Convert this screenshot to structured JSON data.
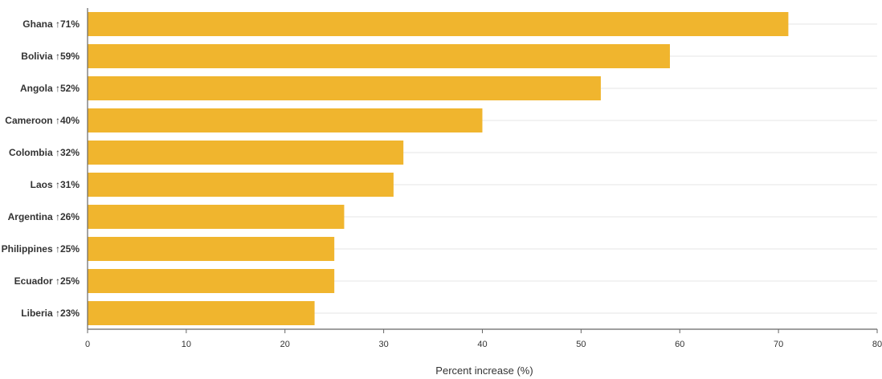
{
  "colors": {
    "bar": "#F0B52E",
    "text": "#333333",
    "grid": "#E6E6E6",
    "axis": "#666666",
    "background": "#FFFFFF"
  },
  "chart_data": {
    "type": "bar",
    "orientation": "horizontal",
    "categories": [
      "Ghana ↑71%",
      "Bolivia ↑59%",
      "Angola ↑52%",
      "Cameroon ↑40%",
      "Colombia ↑32%",
      "Laos ↑31%",
      "Argentina ↑26%",
      "Philippines ↑25%",
      "Ecuador ↑25%",
      "Liberia ↑23%"
    ],
    "values": [
      71,
      59,
      52,
      40,
      32,
      31,
      26,
      25,
      25,
      23
    ],
    "xlabel": "Percent increase (%)",
    "ylabel": "",
    "xlim": [
      0,
      80
    ],
    "xticks": [
      0,
      10,
      20,
      30,
      40,
      50,
      60,
      70,
      80
    ],
    "xtick_labels": [
      "0",
      "10",
      "20",
      "30",
      "40",
      "50",
      "60",
      "70",
      "80"
    ],
    "grid": true,
    "legend": "none"
  }
}
